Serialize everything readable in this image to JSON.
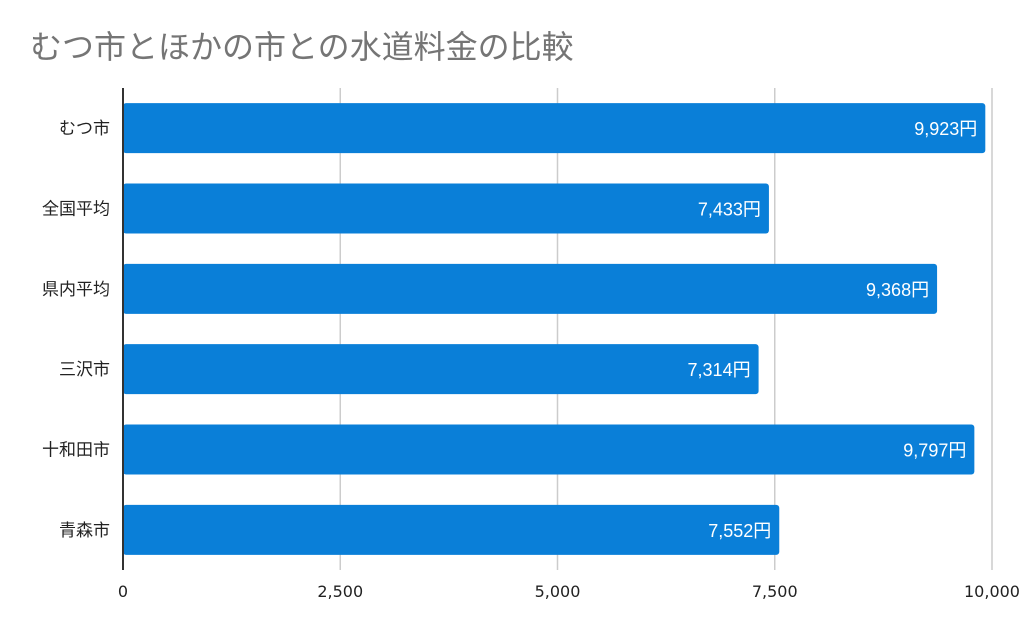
{
  "chart_data": {
    "type": "bar",
    "orientation": "horizontal",
    "title": "むつ市とほかの市との水道料金の比較",
    "categories": [
      "むつ市",
      "全国平均",
      "県内平均",
      "三沢市",
      "十和田市",
      "青森市"
    ],
    "values": [
      9923,
      7433,
      9368,
      7314,
      9797,
      7552
    ],
    "data_labels": [
      "9,923円",
      "7,433円",
      "9,368円",
      "7,314円",
      "9,797円",
      "7,552円"
    ],
    "xlim": [
      0,
      10000
    ],
    "x_ticks": [
      0,
      2500,
      5000,
      7500,
      10000
    ],
    "x_tick_labels": [
      "0",
      "2,500",
      "5,000",
      "7,500",
      "10,000"
    ],
    "grid": true,
    "legend": "none",
    "colors": {
      "bar": "#0a7fd8",
      "grid": "#cccccc",
      "axis": "#333333",
      "title": "#757575",
      "data_label": "#ffffff"
    }
  }
}
